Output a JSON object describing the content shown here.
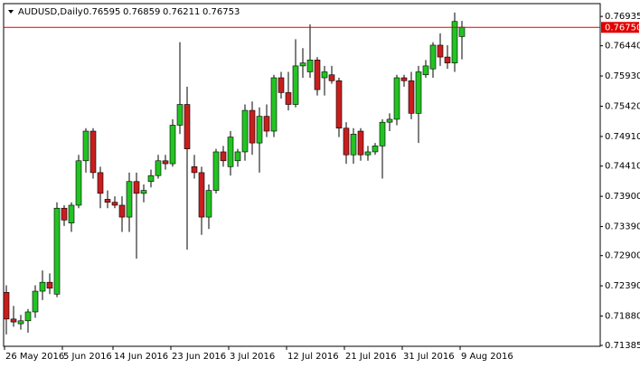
{
  "chart_data": {
    "type": "candlestick",
    "title": "AUDUSD,Daily",
    "categories": [
      "26 May 2016",
      null,
      null,
      null,
      null,
      null,
      null,
      null,
      "5 Jun 2016",
      null,
      null,
      null,
      null,
      null,
      null,
      "14 Jun 2016",
      null,
      null,
      null,
      null,
      null,
      null,
      null,
      "23 Jun 2016",
      null,
      null,
      null,
      null,
      null,
      null,
      null,
      "3 Jul 2016",
      null,
      null,
      null,
      null,
      null,
      null,
      null,
      "12 Jul 2016",
      null,
      null,
      null,
      null,
      null,
      null,
      null,
      "21 Jul 2016",
      null,
      null,
      null,
      null,
      null,
      null,
      null,
      "31 Jul 2016",
      null,
      null,
      null,
      null,
      null,
      null,
      null,
      "9 Aug 2016"
    ],
    "ohlc": {
      "open": [
        0.7228,
        0.7183,
        0.7175,
        0.718,
        0.7195,
        0.723,
        0.7245,
        0.7225,
        0.737,
        0.7345,
        0.7375,
        0.745,
        0.75,
        0.743,
        0.7385,
        0.738,
        0.7375,
        0.7355,
        0.7415,
        0.7395,
        0.7415,
        0.7425,
        0.745,
        0.7445,
        0.751,
        0.7545,
        0.744,
        0.743,
        0.7355,
        0.74,
        0.7465,
        0.744,
        0.745,
        0.7465,
        0.7535,
        0.748,
        0.7525,
        0.75,
        0.759,
        0.7565,
        0.7545,
        0.761,
        0.76,
        0.762,
        0.759,
        0.7595,
        0.7585,
        0.7505,
        0.746,
        0.75,
        0.746,
        0.7465,
        0.7475,
        0.7515,
        0.752,
        0.759,
        0.7585,
        0.753,
        0.7595,
        0.7605,
        0.7645,
        0.7625,
        0.7615,
        0.76595
      ],
      "high": [
        0.724,
        0.7205,
        0.719,
        0.72,
        0.724,
        0.7265,
        0.726,
        0.738,
        0.7375,
        0.738,
        0.746,
        0.7505,
        0.7505,
        0.744,
        0.74,
        0.739,
        0.739,
        0.743,
        0.743,
        0.741,
        0.7435,
        0.746,
        0.746,
        0.752,
        0.765,
        0.7575,
        0.746,
        0.744,
        0.741,
        0.747,
        0.7475,
        0.75,
        0.747,
        0.7545,
        0.755,
        0.754,
        0.7545,
        0.7595,
        0.76,
        0.76,
        0.7655,
        0.764,
        0.768,
        0.7625,
        0.761,
        0.761,
        0.759,
        0.7515,
        0.7505,
        0.7505,
        0.7475,
        0.748,
        0.752,
        0.753,
        0.7595,
        0.7595,
        0.76,
        0.761,
        0.762,
        0.765,
        0.7665,
        0.7645,
        0.77,
        0.76859
      ],
      "low": [
        0.7157,
        0.717,
        0.7165,
        0.716,
        0.7185,
        0.7215,
        0.7225,
        0.722,
        0.734,
        0.733,
        0.737,
        0.743,
        0.742,
        0.737,
        0.737,
        0.737,
        0.733,
        0.733,
        0.7285,
        0.738,
        0.7405,
        0.742,
        0.7435,
        0.744,
        0.7495,
        0.73,
        0.742,
        0.7325,
        0.7335,
        0.7395,
        0.744,
        0.7425,
        0.744,
        0.745,
        0.746,
        0.743,
        0.749,
        0.749,
        0.7555,
        0.7535,
        0.754,
        0.759,
        0.759,
        0.756,
        0.756,
        0.758,
        0.749,
        0.7445,
        0.7445,
        0.745,
        0.745,
        0.746,
        0.742,
        0.75,
        0.751,
        0.7575,
        0.752,
        0.748,
        0.759,
        0.759,
        0.761,
        0.7605,
        0.76,
        0.76211
      ],
      "close": [
        0.7183,
        0.7178,
        0.718,
        0.7195,
        0.723,
        0.7245,
        0.7235,
        0.737,
        0.735,
        0.7375,
        0.745,
        0.75,
        0.743,
        0.7395,
        0.738,
        0.7375,
        0.7355,
        0.7415,
        0.7395,
        0.74,
        0.7425,
        0.745,
        0.7445,
        0.751,
        0.7545,
        0.747,
        0.743,
        0.7355,
        0.74,
        0.7465,
        0.745,
        0.749,
        0.7465,
        0.7535,
        0.748,
        0.7525,
        0.75,
        0.759,
        0.7565,
        0.7545,
        0.761,
        0.7615,
        0.762,
        0.757,
        0.76,
        0.7585,
        0.7505,
        0.746,
        0.7495,
        0.746,
        0.7465,
        0.7475,
        0.7515,
        0.752,
        0.759,
        0.7585,
        0.753,
        0.76,
        0.761,
        0.7645,
        0.7625,
        0.7615,
        0.7685,
        0.76753
      ]
    },
    "up_color": "#22c322",
    "down_color": "#c81e1e",
    "ylim": [
      0.7137,
      0.7709
    ],
    "yticks": [
      0.76935,
      {
        "value": 0.7644,
        "label": "0.76440"
      },
      {
        "value": 0.7593,
        "label": "0.75930"
      },
      {
        "value": 0.7542,
        "label": "0.75420"
      },
      {
        "value": 0.7491,
        "label": "0.74910"
      },
      {
        "value": 0.7441,
        "label": "0.74410"
      },
      {
        "value": 0.739,
        "label": "0.73900"
      },
      {
        "value": 0.7339,
        "label": "0.73390"
      },
      {
        "value": 0.729,
        "label": "0.72900"
      },
      {
        "value": 0.7239,
        "label": "0.72390"
      },
      {
        "value": 0.7188,
        "label": "0.71880"
      },
      0.71385
    ],
    "current_price": {
      "value": 0.7675,
      "label": "0.76750"
    },
    "current_color": "#e00000"
  }
}
